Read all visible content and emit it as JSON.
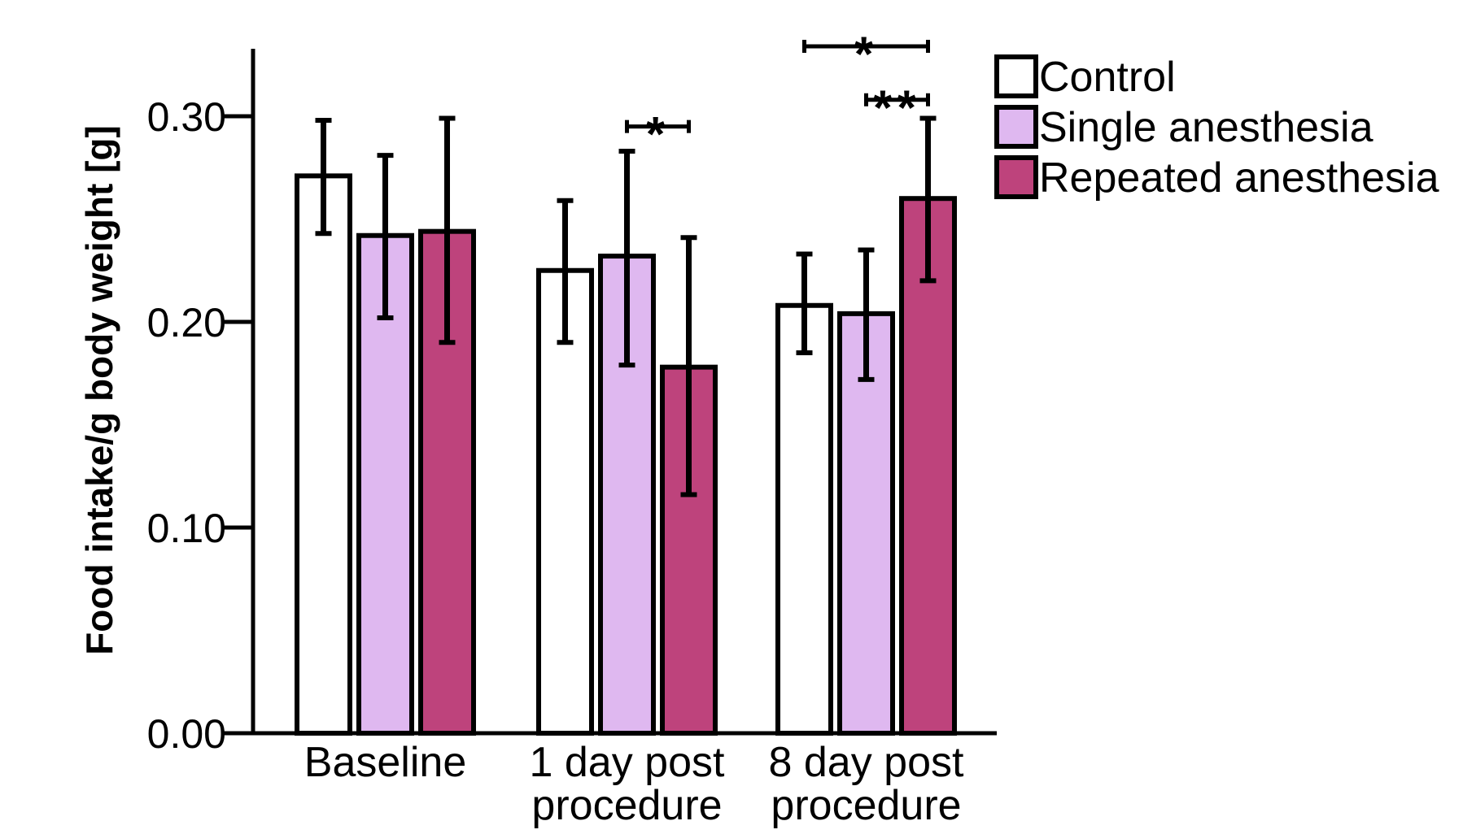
{
  "chart_data": {
    "type": "bar",
    "title": "",
    "xlabel": "",
    "ylabel": "Food intake/g body weight [g]",
    "ylim": [
      0,
      0.33
    ],
    "yticks": [
      0.0,
      0.1,
      0.2,
      0.3
    ],
    "ytick_labels": [
      "0.00",
      "0.10",
      "0.20",
      "0.30"
    ],
    "categories": [
      {
        "line1": "Baseline",
        "line2": ""
      },
      {
        "line1": "1 day post",
        "line2": "procedure"
      },
      {
        "line1": "8 day post",
        "line2": "procedure"
      }
    ],
    "series": [
      {
        "name": "Control",
        "color": "#ffffff",
        "values": [
          0.271,
          0.225,
          0.208
        ],
        "error": [
          [
            0.243,
            0.298
          ],
          [
            0.19,
            0.259
          ],
          [
            0.185,
            0.233
          ]
        ]
      },
      {
        "name": "Single anesthesia",
        "color": "#dfb8f0",
        "values": [
          0.242,
          0.232,
          0.204
        ],
        "error": [
          [
            0.202,
            0.281
          ],
          [
            0.179,
            0.283
          ],
          [
            0.172,
            0.235
          ]
        ]
      },
      {
        "name": "Repeated anesthesia",
        "color": "#be437c",
        "values": [
          0.244,
          0.178,
          0.26
        ],
        "error": [
          [
            0.19,
            0.299
          ],
          [
            0.116,
            0.241
          ],
          [
            0.22,
            0.299
          ]
        ]
      }
    ],
    "significance": [
      {
        "category": 1,
        "from_series": 1,
        "to_series": 2,
        "label": "*",
        "level": 0.295
      },
      {
        "category": 2,
        "from_series": 0,
        "to_series": 2,
        "label": "*",
        "level": 0.334
      },
      {
        "category": 2,
        "from_series": 1,
        "to_series": 2,
        "label": "**",
        "level": 0.308
      }
    ],
    "legend_position": "top-right"
  }
}
